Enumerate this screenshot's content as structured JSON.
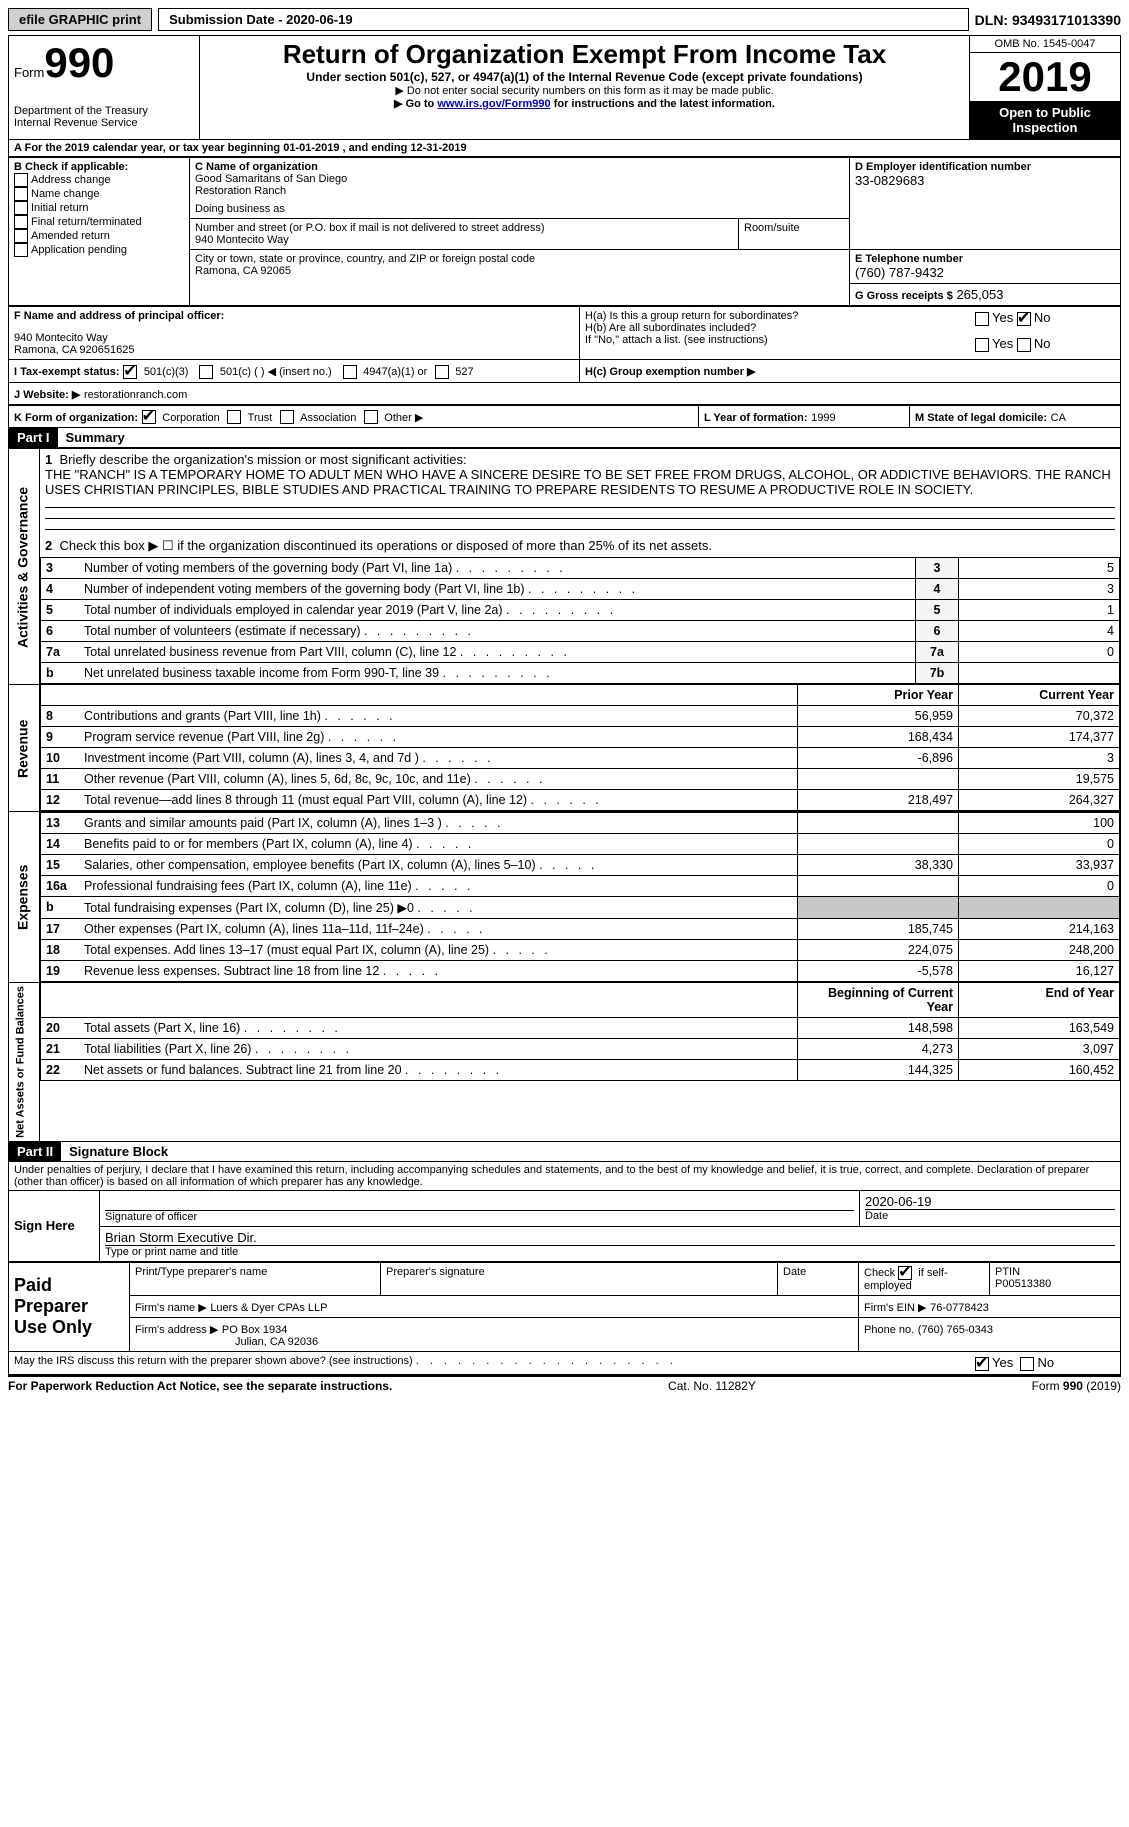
{
  "topbar": {
    "efile": "efile GRAPHIC print",
    "submission": "Submission Date - 2020-06-19",
    "dln": "DLN: 93493171013390"
  },
  "header": {
    "form_label": "Form",
    "form_number": "990",
    "dept1": "Department of the Treasury",
    "dept2": "Internal Revenue Service",
    "title": "Return of Organization Exempt From Income Tax",
    "under": "Under section 501(c), 527, or 4947(a)(1) of the Internal Revenue Code (except private foundations)",
    "note1": "▶ Do not enter social security numbers on this form as it may be made public.",
    "note2_a": "▶ Go to ",
    "note2_link": "www.irs.gov/Form990",
    "note2_b": " for instructions and the latest information.",
    "omb": "OMB No. 1545-0047",
    "year": "2019",
    "open": "Open to Public Inspection"
  },
  "periodA": "For the 2019 calendar year, or tax year beginning 01-01-2019   , and ending 12-31-2019",
  "boxB": {
    "title": "B Check if applicable:",
    "items": [
      "Address change",
      "Name change",
      "Initial return",
      "Final return/terminated",
      "Amended return",
      "Application pending"
    ]
  },
  "boxC": {
    "label": "C Name of organization",
    "name1": "Good Samaritans of San Diego",
    "name2": "Restoration Ranch",
    "dba_label": "Doing business as",
    "addr_label": "Number and street (or P.O. box if mail is not delivered to street address)",
    "room_label": "Room/suite",
    "addr": "940 Montecito Way",
    "city_label": "City or town, state or province, country, and ZIP or foreign postal code",
    "city": "Ramona, CA  92065"
  },
  "boxD": {
    "label": "D Employer identification number",
    "val": "33-0829683"
  },
  "boxE": {
    "label": "E Telephone number",
    "val": "(760) 787-9432"
  },
  "boxG": {
    "label": "G Gross receipts $",
    "val": "265,053"
  },
  "boxF": {
    "label": "F  Name and address of principal officer:",
    "line1": "940 Montecito Way",
    "line2": "Ramona, CA  920651625"
  },
  "boxH": {
    "a": "H(a)  Is this a group return for subordinates?",
    "b": "H(b)  Are all subordinates included?",
    "note": "If \"No,\" attach a list. (see instructions)",
    "c": "H(c)  Group exemption number ▶"
  },
  "boxI": {
    "label": "I  Tax-exempt status:",
    "opts": [
      "501(c)(3)",
      "501(c) (  ) ◀ (insert no.)",
      "4947(a)(1) or",
      "527"
    ]
  },
  "boxJ": {
    "label": "J  Website: ▶",
    "val": "restorationranch.com"
  },
  "boxK": {
    "label": "K Form of organization:",
    "opts": [
      "Corporation",
      "Trust",
      "Association",
      "Other ▶"
    ]
  },
  "boxL": {
    "label": "L Year of formation:",
    "val": "1999"
  },
  "boxM": {
    "label": "M State of legal domicile:",
    "val": "CA"
  },
  "partI": {
    "bar": "Part I",
    "title": "Summary"
  },
  "summary": {
    "q1": "Briefly describe the organization's mission or most significant activities:",
    "mission": "THE \"RANCH\" IS A TEMPORARY HOME TO ADULT MEN WHO HAVE A SINCERE DESIRE TO BE SET FREE FROM DRUGS, ALCOHOL, OR ADDICTIVE BEHAVIORS. THE RANCH USES CHRISTIAN PRINCIPLES, BIBLE STUDIES AND PRACTICAL TRAINING TO PREPARE RESIDENTS TO RESUME A PRODUCTIVE ROLE IN SOCIETY.",
    "q2": "Check this box ▶ ☐  if the organization discontinued its operations or disposed of more than 25% of its net assets.",
    "lines_gov": [
      {
        "n": "3",
        "t": "Number of voting members of the governing body (Part VI, line 1a)",
        "c": "3",
        "v": "5"
      },
      {
        "n": "4",
        "t": "Number of independent voting members of the governing body (Part VI, line 1b)",
        "c": "4",
        "v": "3"
      },
      {
        "n": "5",
        "t": "Total number of individuals employed in calendar year 2019 (Part V, line 2a)",
        "c": "5",
        "v": "1"
      },
      {
        "n": "6",
        "t": "Total number of volunteers (estimate if necessary)",
        "c": "6",
        "v": "4"
      },
      {
        "n": "7a",
        "t": "Total unrelated business revenue from Part VIII, column (C), line 12",
        "c": "7a",
        "v": "0"
      },
      {
        "n": "b",
        "t": "Net unrelated business taxable income from Form 990-T, line 39",
        "c": "7b",
        "v": ""
      }
    ],
    "hdr_prior": "Prior Year",
    "hdr_curr": "Current Year",
    "revenue": [
      {
        "n": "8",
        "t": "Contributions and grants (Part VIII, line 1h)",
        "p": "56,959",
        "c": "70,372"
      },
      {
        "n": "9",
        "t": "Program service revenue (Part VIII, line 2g)",
        "p": "168,434",
        "c": "174,377"
      },
      {
        "n": "10",
        "t": "Investment income (Part VIII, column (A), lines 3, 4, and 7d )",
        "p": "-6,896",
        "c": "3"
      },
      {
        "n": "11",
        "t": "Other revenue (Part VIII, column (A), lines 5, 6d, 8c, 9c, 10c, and 11e)",
        "p": "",
        "c": "19,575"
      },
      {
        "n": "12",
        "t": "Total revenue—add lines 8 through 11 (must equal Part VIII, column (A), line 12)",
        "p": "218,497",
        "c": "264,327"
      }
    ],
    "expenses": [
      {
        "n": "13",
        "t": "Grants and similar amounts paid (Part IX, column (A), lines 1–3 )",
        "p": "",
        "c": "100"
      },
      {
        "n": "14",
        "t": "Benefits paid to or for members (Part IX, column (A), line 4)",
        "p": "",
        "c": "0"
      },
      {
        "n": "15",
        "t": "Salaries, other compensation, employee benefits (Part IX, column (A), lines 5–10)",
        "p": "38,330",
        "c": "33,937"
      },
      {
        "n": "16a",
        "t": "Professional fundraising fees (Part IX, column (A), line 11e)",
        "p": "",
        "c": "0"
      },
      {
        "n": "b",
        "t": "Total fundraising expenses (Part IX, column (D), line 25) ▶0",
        "p": "GREY",
        "c": "GREY"
      },
      {
        "n": "17",
        "t": "Other expenses (Part IX, column (A), lines 11a–11d, 11f–24e)",
        "p": "185,745",
        "c": "214,163"
      },
      {
        "n": "18",
        "t": "Total expenses. Add lines 13–17 (must equal Part IX, column (A), line 25)",
        "p": "224,075",
        "c": "248,200"
      },
      {
        "n": "19",
        "t": "Revenue less expenses. Subtract line 18 from line 12",
        "p": "-5,578",
        "c": "16,127"
      }
    ],
    "hdr_begin": "Beginning of Current Year",
    "hdr_end": "End of Year",
    "netassets": [
      {
        "n": "20",
        "t": "Total assets (Part X, line 16)",
        "p": "148,598",
        "c": "163,549"
      },
      {
        "n": "21",
        "t": "Total liabilities (Part X, line 26)",
        "p": "4,273",
        "c": "3,097"
      },
      {
        "n": "22",
        "t": "Net assets or fund balances. Subtract line 21 from line 20",
        "p": "144,325",
        "c": "160,452"
      }
    ]
  },
  "vlabels": {
    "gov": "Activities & Governance",
    "rev": "Revenue",
    "exp": "Expenses",
    "net": "Net Assets or Fund Balances"
  },
  "partII": {
    "bar": "Part II",
    "title": "Signature Block"
  },
  "sig": {
    "penalty": "Under penalties of perjury, I declare that I have examined this return, including accompanying schedules and statements, and to the best of my knowledge and belief, it is true, correct, and complete. Declaration of preparer (other than officer) is based on all information of which preparer has any knowledge.",
    "sign_here": "Sign Here",
    "sig_officer": "Signature of officer",
    "date": "Date",
    "sig_date": "2020-06-19",
    "name": "Brian Storm  Executive Dir.",
    "name_label": "Type or print name and title",
    "paid": "Paid Preparer Use Only",
    "prep_name_label": "Print/Type preparer's name",
    "prep_sig_label": "Preparer's signature",
    "date_label": "Date",
    "check_label": "Check ☑ if self-employed",
    "ptin_label": "PTIN",
    "ptin": "P00513380",
    "firm_name_label": "Firm's name    ▶",
    "firm_name": "Luers & Dyer CPAs LLP",
    "firm_ein_label": "Firm's EIN ▶",
    "firm_ein": "76-0778423",
    "firm_addr_label": "Firm's address ▶",
    "firm_addr1": "PO Box 1934",
    "firm_addr2": "Julian, CA  92036",
    "phone_label": "Phone no.",
    "phone": "(760) 765-0343",
    "may_irs": "May the IRS discuss this return with the preparer shown above? (see instructions)"
  },
  "footer": {
    "left": "For Paperwork Reduction Act Notice, see the separate instructions.",
    "mid": "Cat. No. 11282Y",
    "right": "Form 990 (2019)"
  },
  "yesno": {
    "yes": "Yes",
    "no": "No"
  }
}
